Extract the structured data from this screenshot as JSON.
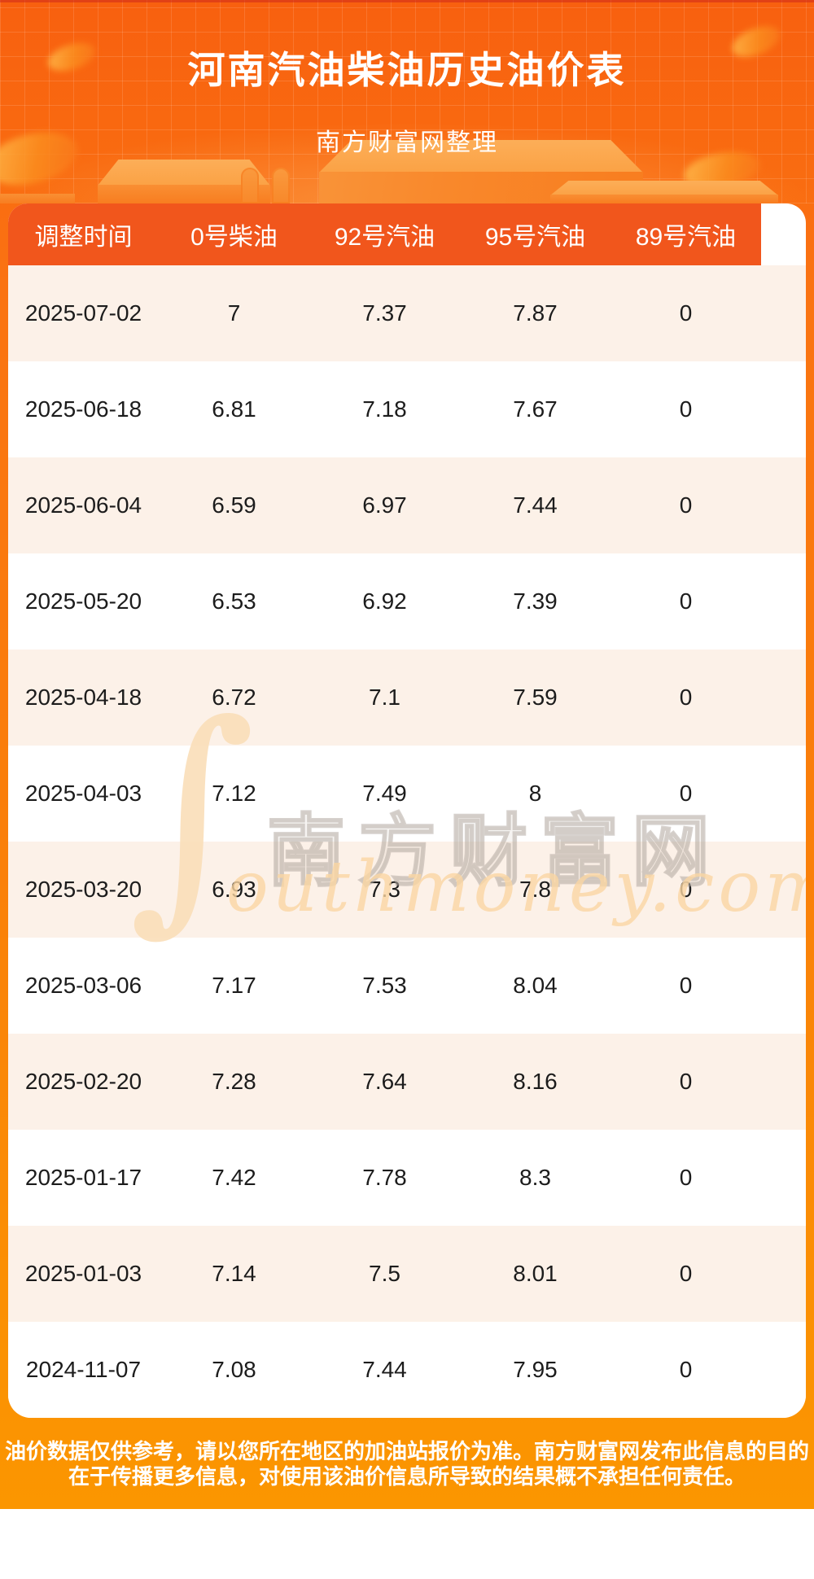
{
  "page": {
    "title": "河南汽油柴油历史油价表",
    "subtitle": "南方财富网整理"
  },
  "chart_data": {
    "type": "table",
    "title": "河南汽油柴油历史油价表",
    "subtitle": "南方财富网整理",
    "columns": [
      "调整时间",
      "0号柴油",
      "92号汽油",
      "95号汽油",
      "89号汽油"
    ],
    "rows": [
      [
        "2025-07-02",
        "7",
        "7.37",
        "7.87",
        "0"
      ],
      [
        "2025-06-18",
        "6.81",
        "7.18",
        "7.67",
        "0"
      ],
      [
        "2025-06-04",
        "6.59",
        "6.97",
        "7.44",
        "0"
      ],
      [
        "2025-05-20",
        "6.53",
        "6.92",
        "7.39",
        "0"
      ],
      [
        "2025-04-18",
        "6.72",
        "7.1",
        "7.59",
        "0"
      ],
      [
        "2025-04-03",
        "7.12",
        "7.49",
        "8",
        "0"
      ],
      [
        "2025-03-20",
        "6.93",
        "7.3",
        "7.8",
        "0"
      ],
      [
        "2025-03-06",
        "7.17",
        "7.53",
        "8.04",
        "0"
      ],
      [
        "2025-02-20",
        "7.28",
        "7.64",
        "8.16",
        "0"
      ],
      [
        "2025-01-17",
        "7.42",
        "7.78",
        "8.3",
        "0"
      ],
      [
        "2025-01-03",
        "7.14",
        "7.5",
        "8.01",
        "0"
      ],
      [
        "2024-11-07",
        "7.08",
        "7.44",
        "7.95",
        "0"
      ]
    ],
    "row_striping": [
      "#FCF1E8",
      "#FFFFFF"
    ],
    "legend_position": "none",
    "grid": false
  },
  "watermark": {
    "swoosh": "∫",
    "cn": "南方财富网",
    "en": "outhmoney.com"
  },
  "footer": {
    "disclaimer": "油价数据仅供参考，请以您所在地区的加油站报价为准。南方财富网发布此信息的目的在于传播更多信息，对使用该油价信息所导致的结果概不承担任何责任。"
  },
  "colors": {
    "page_gradient_top": "#F8600F",
    "page_gradient_bottom": "#FB9600",
    "table_header_bg": "#F1561C",
    "row_alt_bg": "#FCF1E8",
    "row_text": "#1C1C1C",
    "header_text": "#FFFFFF",
    "podium_top_face": "#FCAE58",
    "podium_front_face": "#F9882B",
    "watermark_tint": "#FADEB8"
  }
}
